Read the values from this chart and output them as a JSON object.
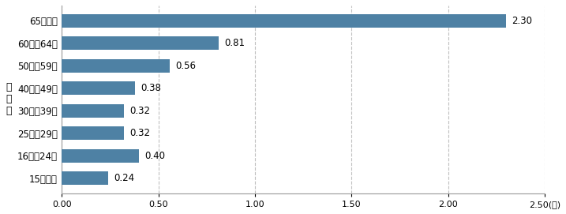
{
  "categories": [
    "15歳以下",
    "16歳～24歳",
    "25歳～29歳",
    "30歳～39歳",
    "40歳～49歳",
    "50歳～59歳",
    "60歳～64歳",
    "65歳以上"
  ],
  "values": [
    0.24,
    0.4,
    0.32,
    0.32,
    0.38,
    0.56,
    0.81,
    2.3
  ],
  "bar_color": "#4e81a4",
  "ylabel": "年\n齢\n層",
  "xlim": [
    0,
    2.5
  ],
  "xticks": [
    0.0,
    0.5,
    1.0,
    1.5,
    2.0,
    2.5
  ],
  "xtick_labels": [
    "0.00",
    "0.50",
    "1.00",
    "1.50",
    "2.00",
    "2.50"
  ],
  "value_labels": [
    "0.24",
    "0.40",
    "0.32",
    "0.32",
    "0.38",
    "0.56",
    "0.81",
    "2.30"
  ],
  "xlabel_suffix": "(％)",
  "background_color": "#ffffff",
  "grid_color": "#c0c0c0"
}
